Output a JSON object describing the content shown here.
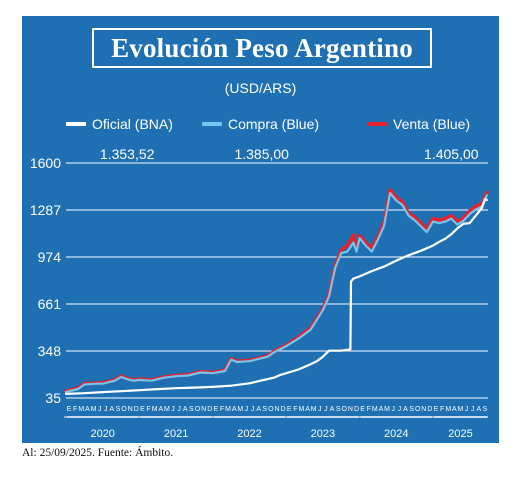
{
  "title": "Evolución Peso Argentino",
  "subtitle": "(USD/ARS)",
  "footer": "Al: 25/09/2025. Fuente: Ámbito.",
  "colors": {
    "background": "#1f6fb3",
    "oficial": "#ffffff",
    "compra": "#74c6ee",
    "venta": "#e8212b",
    "grid": "#ffffff"
  },
  "chart_data": {
    "type": "line",
    "title": "Evolución Peso Argentino",
    "subtitle": "(USD/ARS)",
    "xlabel": "",
    "ylabel": "",
    "yticks": [
      35,
      348,
      661,
      974,
      1287,
      1600
    ],
    "ylim": [
      35,
      1600
    ],
    "xlim": [
      0,
      69
    ],
    "x_month_labels": [
      "E",
      "F",
      "M",
      "A",
      "M",
      "J",
      "J",
      "A",
      "S",
      "O",
      "N",
      "D",
      "E",
      "F",
      "M",
      "A",
      "M",
      "J",
      "J",
      "A",
      "S",
      "O",
      "N",
      "D",
      "E",
      "F",
      "M",
      "A",
      "M",
      "J",
      "J",
      "A",
      "S",
      "O",
      "N",
      "D",
      "E",
      "F",
      "M",
      "A",
      "M",
      "J",
      "J",
      "A",
      "S",
      "O",
      "N",
      "D",
      "E",
      "F",
      "M",
      "A",
      "M",
      "J",
      "J",
      "A",
      "S",
      "O",
      "N",
      "D",
      "E",
      "F",
      "M",
      "A",
      "M",
      "J",
      "J",
      "A",
      "S"
    ],
    "year_labels": [
      {
        "label": "2020",
        "start": 0,
        "end": 12
      },
      {
        "label": "2021",
        "start": 12,
        "end": 24
      },
      {
        "label": "2022",
        "start": 24,
        "end": 36
      },
      {
        "label": "2023",
        "start": 36,
        "end": 48
      },
      {
        "label": "2024",
        "start": 48,
        "end": 60
      },
      {
        "label": "2025",
        "start": 60,
        "end": 69
      }
    ],
    "grid": true,
    "legend_position": "top",
    "series": [
      {
        "name": "Oficial (BNA)",
        "color": "#ffffff",
        "x": [
          0,
          3,
          6,
          9,
          12,
          15,
          18,
          21,
          24,
          27,
          30,
          32,
          34,
          35,
          36,
          38,
          40,
          41,
          42,
          43,
          44,
          45,
          46,
          46.5,
          46.6,
          47,
          48,
          50,
          52,
          54,
          56,
          58,
          60,
          61,
          62,
          63,
          64,
          65,
          66,
          67,
          68,
          68.5,
          68.8
        ],
        "y": [
          62,
          67,
          74,
          80,
          87,
          94,
          100,
          104,
          109,
          117,
          133,
          152,
          170,
          188,
          200,
          225,
          260,
          280,
          310,
          350,
          350,
          350,
          355,
          360,
          810,
          830,
          845,
          880,
          910,
          950,
          985,
          1015,
          1050,
          1075,
          1095,
          1125,
          1165,
          1195,
          1200,
          1250,
          1300,
          1360,
          1353.52
        ]
      },
      {
        "name": "Compra (Blue)",
        "color": "#74c6ee",
        "x": [
          0,
          2,
          3,
          5,
          6,
          8,
          9,
          10,
          11,
          12,
          14,
          16,
          18,
          20,
          22,
          24,
          26,
          27,
          28,
          30,
          31,
          32,
          33,
          34,
          36,
          38,
          40,
          42,
          43,
          44,
          45,
          46,
          47,
          47.5,
          48,
          49,
          50,
          51,
          52,
          53,
          54,
          55,
          56,
          57,
          58,
          59,
          60,
          61,
          62,
          63,
          64,
          65,
          66,
          67,
          68,
          68.5,
          68.8
        ],
        "y": [
          75,
          95,
          125,
          130,
          130,
          150,
          175,
          160,
          150,
          155,
          150,
          170,
          180,
          185,
          205,
          200,
          215,
          290,
          275,
          280,
          290,
          300,
          310,
          340,
          380,
          430,
          490,
          620,
          710,
          900,
          1000,
          1010,
          1070,
          1010,
          1100,
          1050,
          1010,
          1090,
          1180,
          1400,
          1350,
          1320,
          1250,
          1220,
          1180,
          1140,
          1210,
          1200,
          1210,
          1230,
          1190,
          1215,
          1260,
          1290,
          1310,
          1350,
          1385
        ]
      },
      {
        "name": "Venta (Blue)",
        "color": "#e8212b",
        "x": [
          0,
          2,
          3,
          5,
          6,
          8,
          9,
          10,
          11,
          12,
          14,
          16,
          18,
          20,
          22,
          24,
          26,
          27,
          28,
          30,
          31,
          32,
          33,
          34,
          36,
          38,
          40,
          42,
          43,
          44,
          45,
          46,
          47,
          47.5,
          48,
          49,
          50,
          51,
          52,
          53,
          54,
          55,
          56,
          57,
          58,
          59,
          60,
          61,
          62,
          63,
          64,
          65,
          66,
          67,
          68,
          68.5,
          68.8
        ],
        "y": [
          80,
          100,
          130,
          135,
          135,
          155,
          180,
          165,
          155,
          160,
          155,
          175,
          185,
          190,
          210,
          205,
          220,
          295,
          280,
          285,
          295,
          305,
          315,
          345,
          385,
          440,
          500,
          630,
          720,
          915,
          1020,
          1050,
          1120,
          1030,
          1115,
          1070,
          1030,
          1110,
          1200,
          1420,
          1370,
          1340,
          1265,
          1240,
          1200,
          1160,
          1230,
          1220,
          1230,
          1250,
          1210,
          1235,
          1280,
          1310,
          1330,
          1370,
          1405
        ]
      }
    ],
    "annotations": [
      {
        "text": "1.353,52",
        "series": "Oficial (BNA)",
        "at_x": 10
      },
      {
        "text": "1.385,00",
        "series": "Compra (Blue)",
        "at_x": 32
      },
      {
        "text": "1.405,00",
        "series": "Venta (Blue)",
        "at_x": 63
      }
    ]
  }
}
